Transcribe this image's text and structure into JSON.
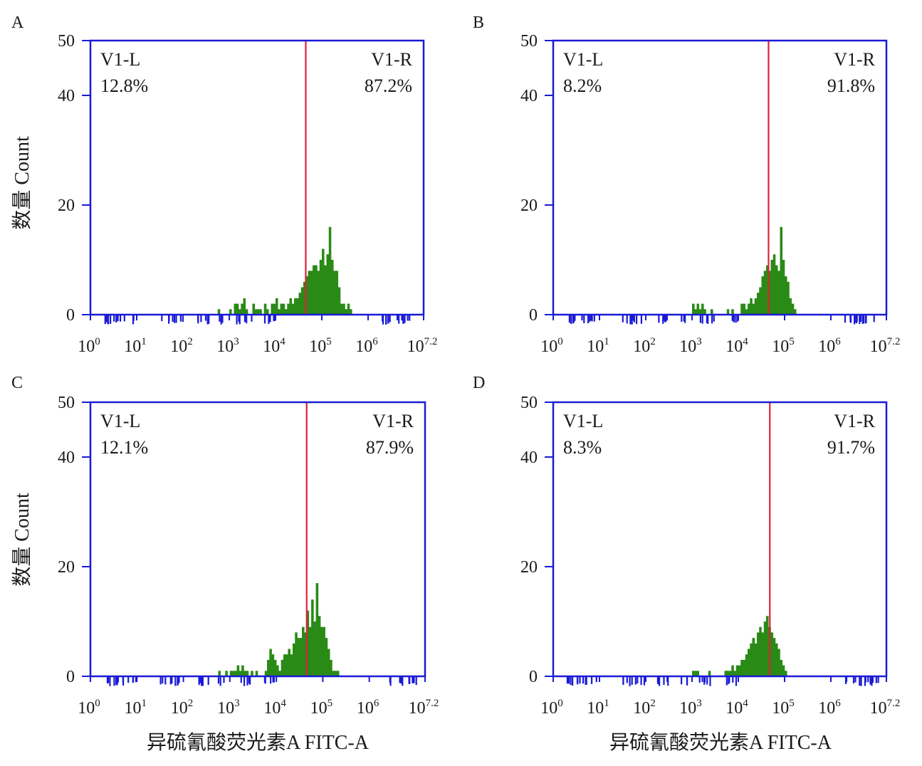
{
  "figure": {
    "xlabel": "异硫氰酸荧光素A FITC-A",
    "ylabel": "数量 Count"
  },
  "colors": {
    "axis": "#1a1ad6",
    "gate": "#e0203a",
    "bars": "#2a8a16",
    "text": "#1a1a1a"
  },
  "chart_data": [
    {
      "panel": "A",
      "type": "bar",
      "x_scale": "log10",
      "xlim": [
        1,
        15848932
      ],
      "ylim": [
        0,
        50
      ],
      "x_ticks": [
        {
          "base": "10",
          "exp": "0"
        },
        {
          "base": "10",
          "exp": "1"
        },
        {
          "base": "10",
          "exp": "2"
        },
        {
          "base": "10",
          "exp": "3"
        },
        {
          "base": "10",
          "exp": "4"
        },
        {
          "base": "10",
          "exp": "5"
        },
        {
          "base": "10",
          "exp": "6"
        },
        {
          "base": "10",
          "exp": "7.2"
        }
      ],
      "y_ticks": [
        "0",
        "20",
        "40",
        "50"
      ],
      "gate_x": 45000,
      "gates": [
        {
          "name": "V1-L",
          "percent": "12.8%"
        },
        {
          "name": "V1-R",
          "percent": "87.2%"
        }
      ],
      "histogram": {
        "x_exp_start": 2.75,
        "bin_width_exp": 0.05,
        "counts": [
          1,
          0,
          0,
          0,
          0,
          1,
          0,
          2,
          2,
          1,
          2,
          3,
          1,
          0,
          0,
          2,
          1,
          1,
          1,
          0,
          2,
          1,
          0,
          2,
          2,
          3,
          1,
          2,
          2,
          1,
          2,
          3,
          2,
          3,
          3,
          4,
          5,
          6,
          7,
          8,
          8,
          9,
          9,
          8,
          10,
          12,
          9,
          11,
          16,
          10,
          8,
          8,
          5,
          2,
          2,
          1,
          2,
          1,
          0,
          0
        ]
      }
    },
    {
      "panel": "B",
      "type": "bar",
      "x_scale": "log10",
      "xlim": [
        1,
        15848932
      ],
      "ylim": [
        0,
        50
      ],
      "x_ticks": [
        {
          "base": "10",
          "exp": "0"
        },
        {
          "base": "10",
          "exp": "1"
        },
        {
          "base": "10",
          "exp": "2"
        },
        {
          "base": "10",
          "exp": "3"
        },
        {
          "base": "10",
          "exp": "4"
        },
        {
          "base": "10",
          "exp": "5"
        },
        {
          "base": "10",
          "exp": "6"
        },
        {
          "base": "10",
          "exp": "7.2"
        }
      ],
      "y_ticks": [
        "0",
        "20",
        "40",
        "50"
      ],
      "gate_x": 45000,
      "gates": [
        {
          "name": "V1-L",
          "percent": "8.2%"
        },
        {
          "name": "V1-R",
          "percent": "91.8%"
        }
      ],
      "histogram": {
        "x_exp_start": 3.0,
        "bin_width_exp": 0.05,
        "counts": [
          2,
          1,
          2,
          1,
          2,
          1,
          0,
          0,
          1,
          0,
          0,
          0,
          0,
          0,
          0,
          1,
          0,
          1,
          0,
          0,
          0,
          2,
          2,
          1,
          2,
          3,
          2,
          3,
          4,
          5,
          7,
          8,
          9,
          8,
          10,
          11,
          9,
          8,
          16,
          10,
          7,
          6,
          3,
          2,
          1
        ]
      }
    },
    {
      "panel": "C",
      "type": "bar",
      "x_scale": "log10",
      "xlim": [
        1,
        15848932
      ],
      "ylim": [
        0,
        50
      ],
      "x_ticks": [
        {
          "base": "10",
          "exp": "0"
        },
        {
          "base": "10",
          "exp": "1"
        },
        {
          "base": "10",
          "exp": "2"
        },
        {
          "base": "10",
          "exp": "3"
        },
        {
          "base": "10",
          "exp": "4"
        },
        {
          "base": "10",
          "exp": "5"
        },
        {
          "base": "10",
          "exp": "6"
        },
        {
          "base": "10",
          "exp": "7.2"
        }
      ],
      "y_ticks": [
        "0",
        "20",
        "40",
        "50"
      ],
      "gate_x": 45000,
      "gates": [
        {
          "name": "V1-L",
          "percent": "12.1%"
        },
        {
          "name": "V1-R",
          "percent": "87.9%"
        }
      ],
      "histogram": {
        "x_exp_start": 2.75,
        "bin_width_exp": 0.05,
        "counts": [
          1,
          0,
          0,
          1,
          0,
          1,
          1,
          1,
          2,
          1,
          2,
          1,
          1,
          0,
          1,
          0,
          1,
          0,
          0,
          0,
          1,
          3,
          5,
          4,
          3,
          2,
          1,
          3,
          4,
          4,
          5,
          4,
          6,
          8,
          7,
          7,
          9,
          8,
          12,
          9,
          14,
          10,
          17,
          11,
          9,
          9,
          7,
          5,
          3,
          1,
          1,
          1,
          0,
          0,
          0
        ]
      }
    },
    {
      "panel": "D",
      "type": "bar",
      "x_scale": "log10",
      "xlim": [
        1,
        15848932
      ],
      "ylim": [
        0,
        50
      ],
      "x_ticks": [
        {
          "base": "10",
          "exp": "0"
        },
        {
          "base": "10",
          "exp": "1"
        },
        {
          "base": "10",
          "exp": "2"
        },
        {
          "base": "10",
          "exp": "3"
        },
        {
          "base": "10",
          "exp": "4"
        },
        {
          "base": "10",
          "exp": "5"
        },
        {
          "base": "10",
          "exp": "6"
        },
        {
          "base": "10",
          "exp": "7.2"
        }
      ],
      "y_ticks": [
        "0",
        "20",
        "40",
        "50"
      ],
      "gate_x": 48000,
      "gates": [
        {
          "name": "V1-L",
          "percent": "8.3%"
        },
        {
          "name": "V1-R",
          "percent": "91.7%"
        }
      ],
      "histogram": {
        "x_exp_start": 3.0,
        "bin_width_exp": 0.05,
        "counts": [
          1,
          1,
          1,
          0,
          0,
          0,
          0,
          1,
          0,
          0,
          0,
          0,
          0,
          0,
          1,
          1,
          1,
          2,
          1,
          2,
          2,
          3,
          3,
          4,
          5,
          6,
          7,
          6,
          8,
          9,
          8,
          10,
          11,
          9,
          8,
          7,
          6,
          5,
          3,
          2,
          1
        ]
      }
    }
  ]
}
